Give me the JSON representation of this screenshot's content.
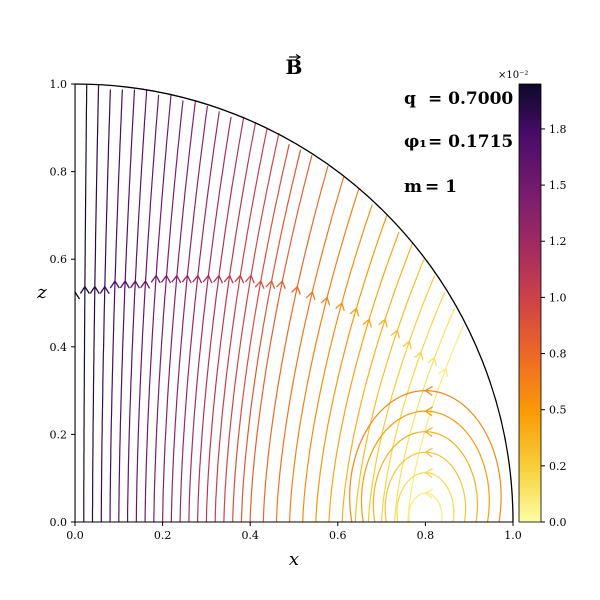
{
  "chart_data": {
    "type": "streamline",
    "title": "B",
    "title_has_vector_arrow": true,
    "xlabel": "x",
    "ylabel": "z",
    "xlim": [
      0.0,
      1.0
    ],
    "ylim": [
      0.0,
      1.0
    ],
    "x_ticks": [
      "0.0",
      "0.2",
      "0.4",
      "0.6",
      "0.8",
      "1.0"
    ],
    "y_ticks": [
      "0.0",
      "0.2",
      "0.4",
      "0.6",
      "0.8",
      "1.0"
    ],
    "grid": false,
    "boundary": "quarter circle r = 1",
    "annotations": [
      {
        "label": "q",
        "value": "= 0.7000"
      },
      {
        "label": "φ₁",
        "value": "= 0.1715"
      },
      {
        "label": "m",
        "value": "= 1"
      }
    ],
    "colorbar": {
      "colormap": "inferno_r",
      "range": [
        0.0,
        1.95
      ],
      "ticks": [
        "0.0",
        "0.2",
        "0.5",
        "0.8",
        "1.0",
        "1.2",
        "1.5",
        "1.8"
      ],
      "tick_values": [
        0.0,
        0.25,
        0.5,
        0.75,
        1.0,
        1.25,
        1.5,
        1.75
      ],
      "exponent_label": "×10⁻²"
    },
    "field_lines": {
      "vertical_line_x": [
        0.0,
        0.02,
        0.04,
        0.06,
        0.08,
        0.1,
        0.12,
        0.14,
        0.16,
        0.18,
        0.2,
        0.22,
        0.24,
        0.26,
        0.28,
        0.3,
        0.32,
        0.34,
        0.36,
        0.38,
        0.4,
        0.43,
        0.46,
        0.49,
        0.52,
        0.55,
        0.58,
        0.61,
        0.64,
        0.67,
        0.7,
        0.73,
        0.76
      ],
      "vortex_center": [
        0.8,
        0.0
      ],
      "loop_radii": [
        0.035,
        0.06,
        0.085,
        0.11,
        0.135,
        0.16
      ]
    }
  }
}
